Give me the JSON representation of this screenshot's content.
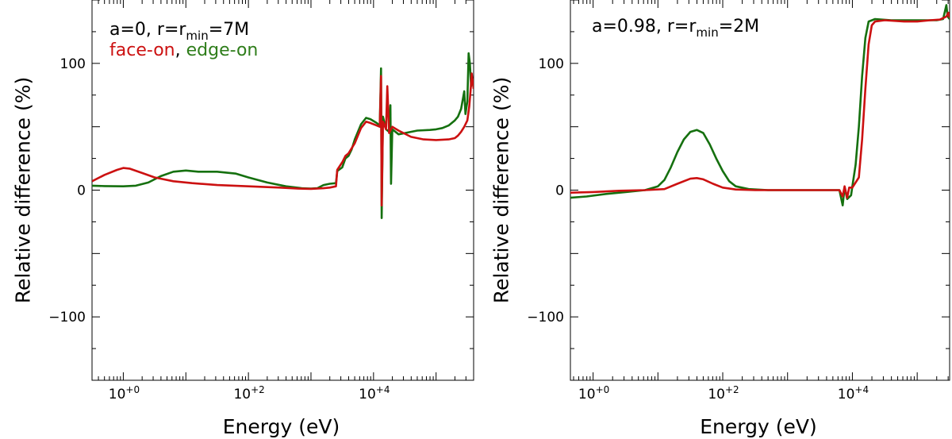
{
  "chart_data": [
    {
      "type": "line",
      "panel": "left",
      "xlabel": "Energy (eV)",
      "ylabel": "Relative difference (%)",
      "xscale": "log",
      "xlim_log10": [
        -0.5,
        5.6
      ],
      "ylim": [
        -150,
        150
      ],
      "xticks": [
        {
          "log10": 0,
          "base": "10",
          "exp": "+0"
        },
        {
          "log10": 2,
          "base": "10",
          "exp": "+2"
        },
        {
          "log10": 4,
          "base": "10",
          "exp": "+4"
        }
      ],
      "yticks": [
        {
          "value": 100,
          "label": "100"
        },
        {
          "value": 0,
          "label": "0"
        },
        {
          "value": -100,
          "label": "−100"
        }
      ],
      "annotation": {
        "text": "a=0, r=r",
        "sub": "min",
        "rest": "=7M"
      },
      "legend": [
        {
          "text": "face-on",
          "color": "#cc1111"
        },
        {
          "text": ", ",
          "color": "#000000"
        },
        {
          "text": "edge-on",
          "color": "#2e7d1a"
        }
      ],
      "series": [
        {
          "name": "edge-on",
          "color": "#15700f",
          "points": [
            [
              -0.5,
              3.5
            ],
            [
              -0.3,
              3.2
            ],
            [
              0.0,
              3.0
            ],
            [
              0.2,
              3.5
            ],
            [
              0.4,
              6
            ],
            [
              0.6,
              11
            ],
            [
              0.8,
              14.5
            ],
            [
              1.0,
              15.5
            ],
            [
              1.2,
              14.5
            ],
            [
              1.5,
              14.5
            ],
            [
              1.8,
              13
            ],
            [
              2.0,
              10
            ],
            [
              2.3,
              6
            ],
            [
              2.6,
              3
            ],
            [
              2.85,
              1.5
            ],
            [
              3.0,
              1.2
            ],
            [
              3.1,
              1.5
            ],
            [
              3.2,
              4
            ],
            [
              3.3,
              5
            ],
            [
              3.4,
              5.5
            ],
            [
              3.42,
              15
            ],
            [
              3.5,
              18
            ],
            [
              3.55,
              25
            ],
            [
              3.6,
              27
            ],
            [
              3.65,
              32
            ],
            [
              3.7,
              40
            ],
            [
              3.8,
              52
            ],
            [
              3.88,
              57
            ],
            [
              3.95,
              56
            ],
            [
              4.05,
              53
            ],
            [
              4.1,
              51
            ],
            [
              4.12,
              96
            ],
            [
              4.13,
              -22
            ],
            [
              4.15,
              58
            ],
            [
              4.2,
              48
            ],
            [
              4.25,
              46
            ],
            [
              4.27,
              67
            ],
            [
              4.28,
              5
            ],
            [
              4.3,
              48
            ],
            [
              4.4,
              44
            ],
            [
              4.5,
              45
            ],
            [
              4.7,
              47
            ],
            [
              4.9,
              47.5
            ],
            [
              5.0,
              48
            ],
            [
              5.1,
              49
            ],
            [
              5.2,
              51
            ],
            [
              5.3,
              55
            ],
            [
              5.35,
              58
            ],
            [
              5.4,
              64
            ],
            [
              5.45,
              78
            ],
            [
              5.47,
              60
            ],
            [
              5.5,
              70
            ],
            [
              5.52,
              108
            ],
            [
              5.54,
              100
            ],
            [
              5.56,
              82
            ],
            [
              5.58,
              88
            ],
            [
              5.6,
              85
            ]
          ]
        },
        {
          "name": "face-on",
          "color": "#cc1111",
          "points": [
            [
              -0.5,
              7
            ],
            [
              -0.3,
              12
            ],
            [
              -0.1,
              16
            ],
            [
              0.0,
              17.5
            ],
            [
              0.1,
              17
            ],
            [
              0.3,
              13.5
            ],
            [
              0.5,
              10
            ],
            [
              0.8,
              7
            ],
            [
              1.1,
              5.5
            ],
            [
              1.5,
              4
            ],
            [
              2.0,
              3
            ],
            [
              2.5,
              2
            ],
            [
              2.8,
              1.2
            ],
            [
              3.0,
              1
            ],
            [
              3.2,
              1.5
            ],
            [
              3.3,
              2
            ],
            [
              3.4,
              3
            ],
            [
              3.42,
              16
            ],
            [
              3.5,
              22
            ],
            [
              3.55,
              27
            ],
            [
              3.6,
              29
            ],
            [
              3.7,
              37
            ],
            [
              3.8,
              49
            ],
            [
              3.88,
              54
            ],
            [
              3.95,
              53
            ],
            [
              4.05,
              51
            ],
            [
              4.1,
              50
            ],
            [
              4.12,
              90
            ],
            [
              4.13,
              -12
            ],
            [
              4.15,
              54
            ],
            [
              4.2,
              48
            ],
            [
              4.22,
              82
            ],
            [
              4.25,
              45
            ],
            [
              4.3,
              50
            ],
            [
              4.4,
              47
            ],
            [
              4.6,
              42
            ],
            [
              4.8,
              40
            ],
            [
              5.0,
              39.5
            ],
            [
              5.2,
              40
            ],
            [
              5.3,
              41
            ],
            [
              5.35,
              43
            ],
            [
              5.4,
              46
            ],
            [
              5.45,
              50
            ],
            [
              5.5,
              55
            ],
            [
              5.53,
              66
            ],
            [
              5.55,
              78
            ],
            [
              5.57,
              92
            ],
            [
              5.6,
              80
            ]
          ]
        }
      ]
    },
    {
      "type": "line",
      "panel": "right",
      "xlabel": "Energy (eV)",
      "ylabel": "Relative difference (%)",
      "xscale": "log",
      "xlim_log10": [
        -0.35,
        5.5
      ],
      "ylim": [
        -150,
        150
      ],
      "xticks": [
        {
          "log10": 0,
          "base": "10",
          "exp": "+0"
        },
        {
          "log10": 2,
          "base": "10",
          "exp": "+2"
        },
        {
          "log10": 4,
          "base": "10",
          "exp": "+4"
        }
      ],
      "yticks": [
        {
          "value": 100,
          "label": "100"
        },
        {
          "value": 0,
          "label": "0"
        },
        {
          "value": -100,
          "label": "−100"
        }
      ],
      "annotation": {
        "text": "a=0.98, r=r",
        "sub": "min",
        "rest": "=2M"
      },
      "legend": [],
      "series": [
        {
          "name": "edge-on",
          "color": "#15700f",
          "points": [
            [
              -0.35,
              -6
            ],
            [
              -0.1,
              -5
            ],
            [
              0.2,
              -3
            ],
            [
              0.5,
              -1.5
            ],
            [
              0.8,
              0
            ],
            [
              1.0,
              3
            ],
            [
              1.1,
              8
            ],
            [
              1.2,
              18
            ],
            [
              1.3,
              30
            ],
            [
              1.4,
              40
            ],
            [
              1.5,
              46
            ],
            [
              1.6,
              47.5
            ],
            [
              1.7,
              45
            ],
            [
              1.8,
              36
            ],
            [
              1.9,
              25
            ],
            [
              2.0,
              15
            ],
            [
              2.1,
              7
            ],
            [
              2.2,
              3
            ],
            [
              2.4,
              0.8
            ],
            [
              2.7,
              0
            ],
            [
              3.0,
              0
            ],
            [
              3.5,
              0
            ],
            [
              3.8,
              0
            ],
            [
              3.85,
              -12
            ],
            [
              3.88,
              2
            ],
            [
              3.92,
              -7
            ],
            [
              3.98,
              -4
            ],
            [
              4.0,
              3
            ],
            [
              4.05,
              20
            ],
            [
              4.1,
              50
            ],
            [
              4.15,
              90
            ],
            [
              4.2,
              120
            ],
            [
              4.25,
              133
            ],
            [
              4.35,
              135
            ],
            [
              4.6,
              134
            ],
            [
              5.0,
              134
            ],
            [
              5.3,
              134
            ],
            [
              5.4,
              135
            ],
            [
              5.45,
              146
            ],
            [
              5.47,
              137
            ],
            [
              5.5,
              135
            ]
          ]
        },
        {
          "name": "face-on",
          "color": "#cc1111",
          "points": [
            [
              -0.35,
              -2
            ],
            [
              0.0,
              -1.5
            ],
            [
              0.4,
              -0.5
            ],
            [
              0.8,
              0
            ],
            [
              1.1,
              0.8
            ],
            [
              1.3,
              5
            ],
            [
              1.5,
              9
            ],
            [
              1.6,
              9.5
            ],
            [
              1.7,
              8.5
            ],
            [
              1.85,
              5
            ],
            [
              2.0,
              2
            ],
            [
              2.2,
              0.5
            ],
            [
              2.5,
              0
            ],
            [
              3.0,
              0
            ],
            [
              3.5,
              0
            ],
            [
              3.8,
              0
            ],
            [
              3.85,
              -5
            ],
            [
              3.88,
              3
            ],
            [
              3.92,
              -6
            ],
            [
              3.95,
              2
            ],
            [
              4.0,
              2
            ],
            [
              4.1,
              10
            ],
            [
              4.15,
              40
            ],
            [
              4.2,
              80
            ],
            [
              4.25,
              115
            ],
            [
              4.3,
              130
            ],
            [
              4.35,
              133
            ],
            [
              4.5,
              134
            ],
            [
              4.8,
              133
            ],
            [
              5.0,
              133
            ],
            [
              5.2,
              134
            ],
            [
              5.35,
              134.5
            ],
            [
              5.45,
              137
            ],
            [
              5.48,
              140
            ],
            [
              5.5,
              136
            ]
          ]
        }
      ]
    }
  ]
}
